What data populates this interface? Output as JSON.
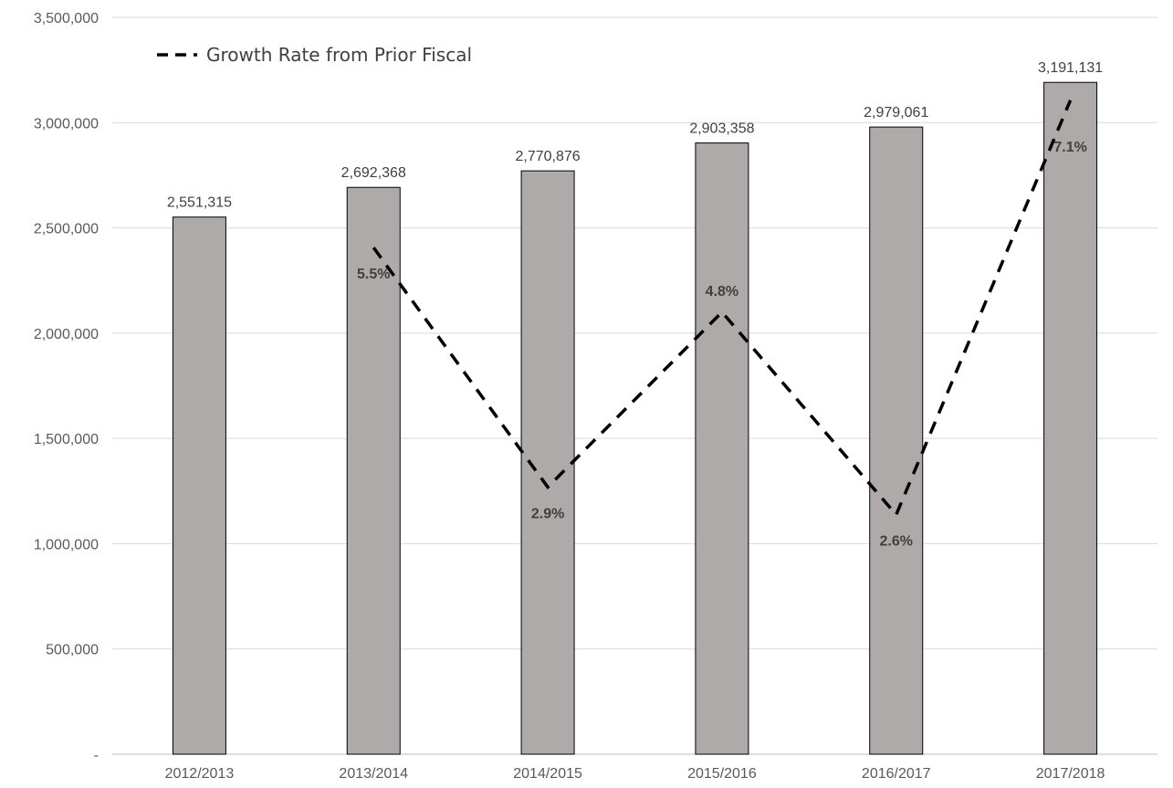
{
  "chart_data": {
    "type": "bar",
    "categories": [
      "2012/2013",
      "2013/2014",
      "2014/2015",
      "2015/2016",
      "2016/2017",
      "2017/2018"
    ],
    "series": [
      {
        "type": "bar",
        "values": [
          2551315,
          2692368,
          2770876,
          2903358,
          2979061,
          3191131
        ],
        "labels": [
          "2,551,315",
          "2,692,368",
          "2,770,876",
          "2,903,358",
          "2,979,061",
          "3,191,131"
        ],
        "color": "#aeaaaa"
      },
      {
        "name": "Growth Rate from Prior Fiscal",
        "type": "line",
        "style": "dashed",
        "secondary_axis": true,
        "values": [
          null,
          5.5,
          2.9,
          4.8,
          2.6,
          7.1
        ],
        "labels": [
          "",
          "5.5%",
          "2.9%",
          "4.8%",
          "2.6%",
          "7.1%"
        ],
        "color": "#000000"
      }
    ],
    "yticks": [
      "-",
      "500,000",
      "1,000,000",
      "1,500,000",
      "2,000,000",
      "2,500,000",
      "3,000,000",
      "3,500,000"
    ],
    "ylim": [
      0,
      3500000
    ],
    "secondary_ylim": [
      0,
      8
    ],
    "grid": true,
    "legend_position": "top-left",
    "title": "",
    "xlabel": "",
    "ylabel": ""
  }
}
